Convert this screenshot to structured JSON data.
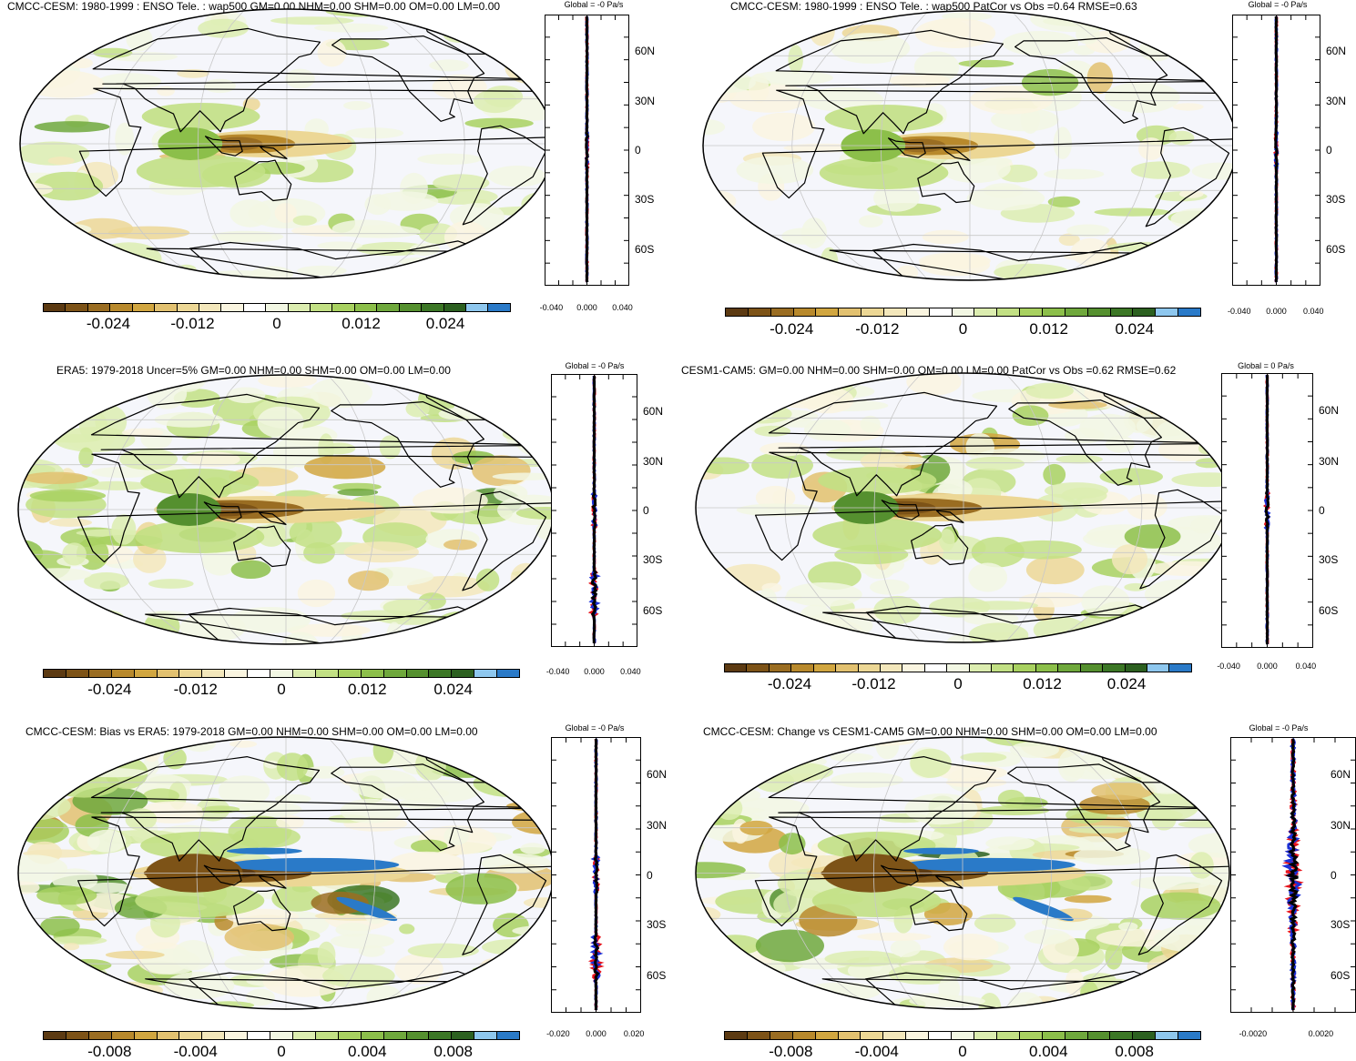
{
  "panels": [
    {
      "title": "CMCC-CESM: 1980-1999 : ENSO Tele. : wap500 GM=0.00 NHM=0.00 SHM=0.00 OM=0.00 LM=0.00",
      "colorbar_labels": [
        "-0.024",
        "-0.012",
        "0",
        "0.012",
        "0.024"
      ],
      "zonal_title": "Global = -0 Pa/s",
      "zonal_x_labels": [
        "-0.040",
        "0.000",
        "0.040"
      ],
      "zonal_y_labels": [
        "60N",
        "30N",
        "0",
        "30S",
        "60S"
      ],
      "intensity": 0.4
    },
    {
      "title": "CMCC-CESM: 1980-1999 : ENSO Tele. : wap500 PatCor vs Obs =0.64 RMSE=0.63",
      "colorbar_labels": [
        "-0.024",
        "-0.012",
        "0",
        "0.012",
        "0.024"
      ],
      "zonal_title": "Global = -0 Pa/s",
      "zonal_x_labels": [
        "-0.040",
        "0.000",
        "0.040"
      ],
      "zonal_y_labels": [
        "60N",
        "30N",
        "0",
        "30S",
        "60S"
      ],
      "intensity": 0.4
    },
    {
      "title": "ERA5: 1979-2018 Uncer=5% GM=0.00 NHM=0.00 SHM=0.00 OM=0.00 LM=0.00",
      "colorbar_labels": [
        "-0.024",
        "-0.012",
        "0",
        "0.012",
        "0.024"
      ],
      "zonal_title": "Global = -0 Pa/s",
      "zonal_x_labels": [
        "-0.040",
        "0.000",
        "0.040"
      ],
      "zonal_y_labels": [
        "60N",
        "30N",
        "0",
        "30S",
        "60S"
      ],
      "intensity": 0.75
    },
    {
      "title": "CESM1-CAM5: GM=0.00 NHM=0.00 SHM=0.00 OM=0.00 LM=0.00 PatCor vs Obs =0.62 RMSE=0.62",
      "colorbar_labels": [
        "-0.024",
        "-0.012",
        "0",
        "0.012",
        "0.024"
      ],
      "zonal_title": "Global = 0 Pa/s",
      "zonal_x_labels": [
        "-0.040",
        "0.000",
        "0.040"
      ],
      "zonal_y_labels": [
        "60N",
        "30N",
        "0",
        "30S",
        "60S"
      ],
      "intensity": 0.75
    },
    {
      "title": "CMCC-CESM: Bias vs ERA5: 1979-2018 GM=0.00 NHM=0.00 SHM=0.00 OM=0.00 LM=0.00",
      "colorbar_labels": [
        "-0.008",
        "-0.004",
        "0",
        "0.004",
        "0.008"
      ],
      "zonal_title": "Global = -0 Pa/s",
      "zonal_x_labels": [
        "-0.020",
        "0.000",
        "0.020"
      ],
      "zonal_y_labels": [
        "60N",
        "30N",
        "0",
        "30S",
        "60S"
      ],
      "intensity": 1.0
    },
    {
      "title": "CMCC-CESM: Change vs CESM1-CAM5 GM=0.00 NHM=0.00 SHM=0.00 OM=0.00 LM=0.00",
      "colorbar_labels": [
        "-0.008",
        "-0.004",
        "0",
        "0.004",
        "0.008"
      ],
      "zonal_title": "Global = -0 Pa/s",
      "zonal_x_labels": [
        "-0.0020",
        "0.0020"
      ],
      "zonal_y_labels": [
        "60N",
        "30N",
        "0",
        "30S",
        "60S"
      ],
      "intensity": 1.0
    }
  ],
  "colorbar_colors": [
    "#5c3a12",
    "#7d5317",
    "#9a6d22",
    "#b8892c",
    "#d1a640",
    "#e2c170",
    "#ecd795",
    "#f3e7bb",
    "#faf5e0",
    "#ffffff",
    "#f2f7e3",
    "#dcedb0",
    "#c2e084",
    "#a8d160",
    "#8cbf4a",
    "#6fa83c",
    "#55902f",
    "#3c7726",
    "#2c6020",
    "#8ec7ee",
    "#2a7ac8"
  ],
  "line_colors": {
    "model": "#e8131b",
    "obs": "#1b2fd6",
    "mean": "#000000"
  }
}
